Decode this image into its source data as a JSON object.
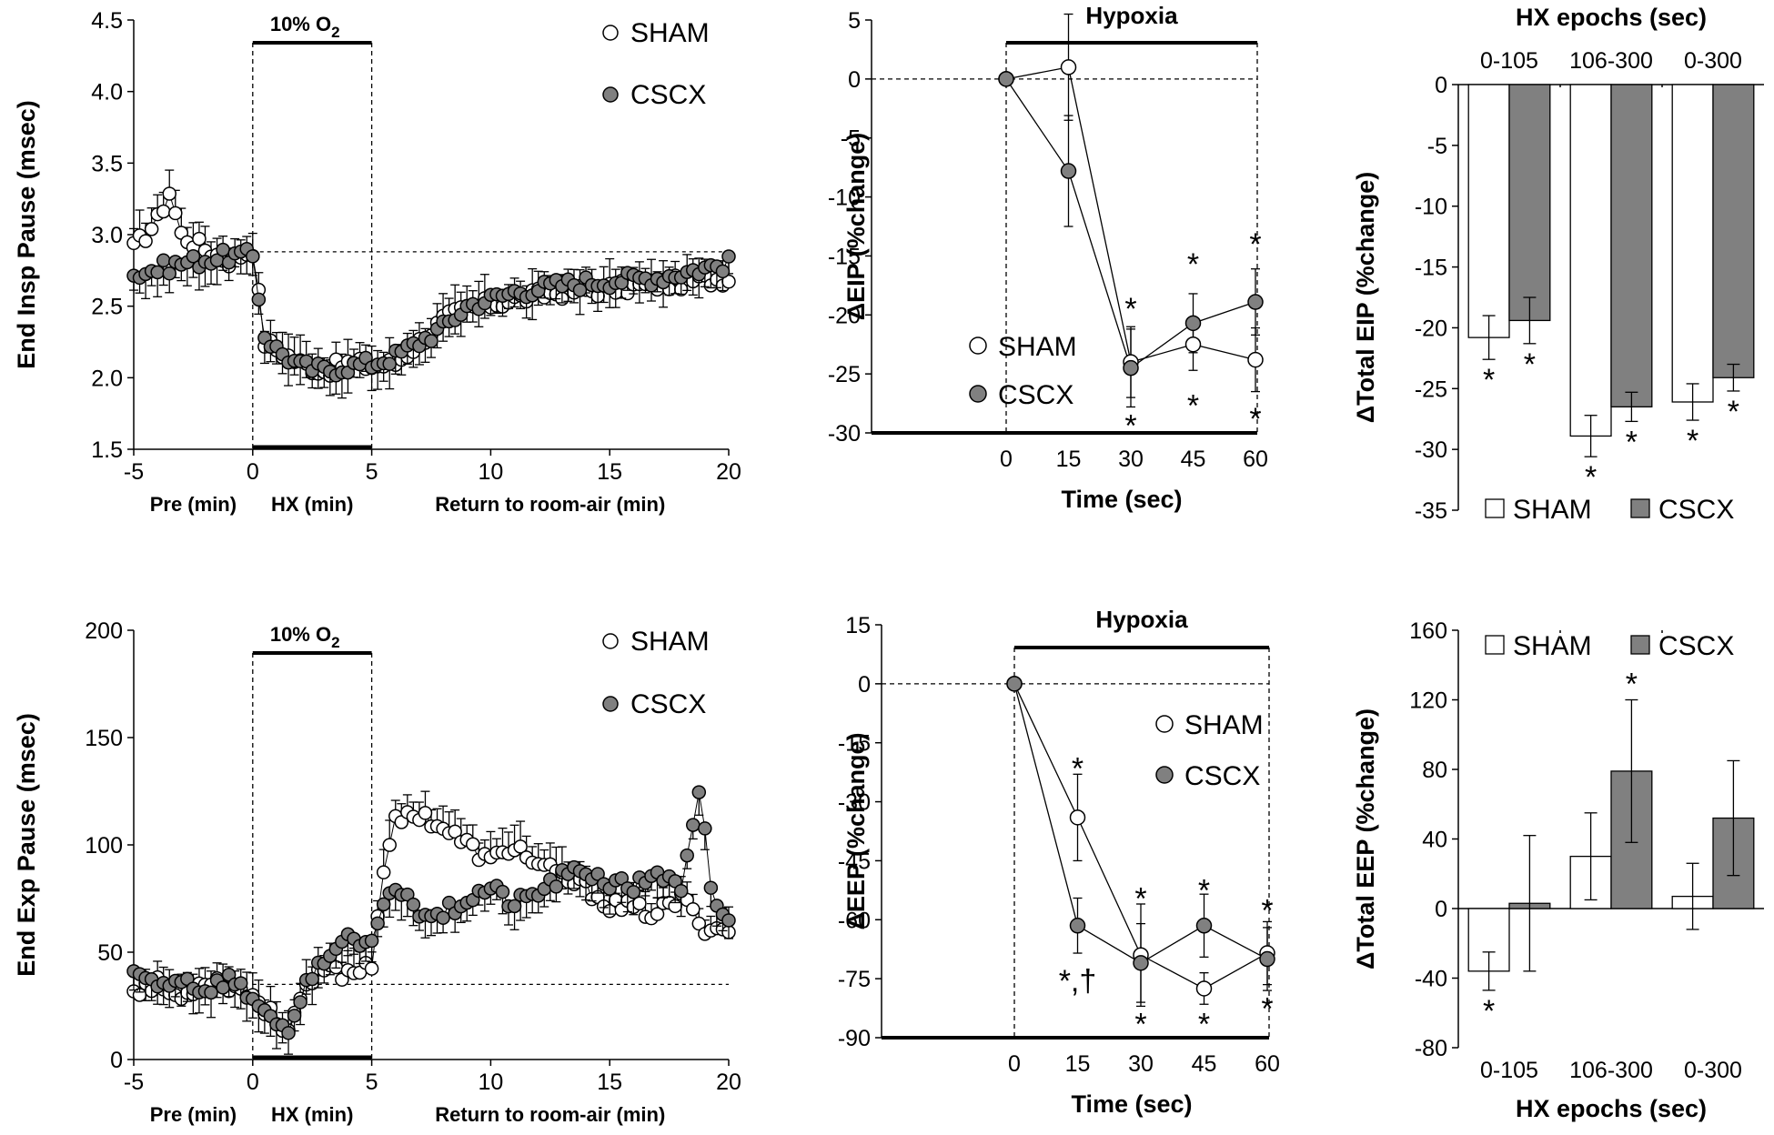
{
  "colors": {
    "sham_fill": "#ffffff",
    "cscx_fill": "#808080",
    "line": "#000000"
  },
  "chart_data": [
    {
      "id": "A",
      "type": "scatter",
      "ylabel": "End Insp Pause (msec)",
      "ylim": [
        1.5,
        4.5
      ],
      "yticks": [
        "1.5",
        "2.0",
        "2.5",
        "3.0",
        "3.5",
        "4.0",
        "4.5"
      ],
      "xlim": [
        -5,
        20
      ],
      "xticks": [
        "-5",
        "0",
        "5",
        "10",
        "15",
        "20"
      ],
      "box_label": "10% O",
      "box_label_sub": "2",
      "box_range": [
        0,
        5
      ],
      "baseline": 2.88,
      "segments": [
        "Pre (min)",
        "HX (min)",
        "Return to room-air (min)"
      ],
      "legend": [
        "SHAM",
        "CSCX"
      ],
      "sham_anchors": [
        [
          -5,
          2.9
        ],
        [
          -4,
          3.1
        ],
        [
          -3.5,
          3.3
        ],
        [
          -3,
          3.0
        ],
        [
          -2,
          2.9
        ],
        [
          -1,
          2.82
        ],
        [
          0,
          2.9
        ],
        [
          0.5,
          2.25
        ],
        [
          1,
          2.2
        ],
        [
          2,
          2.1
        ],
        [
          3,
          2.05
        ],
        [
          4,
          2.1
        ],
        [
          5,
          2.08
        ],
        [
          6,
          2.1
        ],
        [
          7,
          2.25
        ],
        [
          8,
          2.4
        ],
        [
          9,
          2.48
        ],
        [
          11,
          2.55
        ],
        [
          13,
          2.6
        ],
        [
          15,
          2.62
        ],
        [
          17,
          2.65
        ],
        [
          20,
          2.7
        ]
      ],
      "cscx_anchors": [
        [
          -5,
          2.72
        ],
        [
          -3,
          2.8
        ],
        [
          -1,
          2.85
        ],
        [
          0,
          2.85
        ],
        [
          0.5,
          2.3
        ],
        [
          1,
          2.2
        ],
        [
          2,
          2.08
        ],
        [
          3,
          2.05
        ],
        [
          4,
          2.08
        ],
        [
          5,
          2.1
        ],
        [
          6,
          2.15
        ],
        [
          7,
          2.25
        ],
        [
          8,
          2.35
        ],
        [
          9,
          2.5
        ],
        [
          11,
          2.6
        ],
        [
          13,
          2.65
        ],
        [
          15,
          2.68
        ],
        [
          17,
          2.7
        ],
        [
          20,
          2.8
        ]
      ]
    },
    {
      "id": "B",
      "type": "line",
      "ylabel": "ΔEIP (%change)",
      "xlabel": "Time (sec)",
      "title": "Hypoxia",
      "ylim": [
        -30,
        5
      ],
      "yticks": [
        "5",
        "0",
        "-5",
        "-10",
        "-15",
        "-20",
        "-25",
        "-30"
      ],
      "x": [
        0,
        15,
        30,
        45,
        60
      ],
      "xticks": [
        "0",
        "15",
        "30",
        "45",
        "60"
      ],
      "legend": [
        "SHAM",
        "CSCX"
      ],
      "series": [
        {
          "name": "SHAM",
          "values": [
            0,
            1,
            -24,
            -22.5,
            -23.8
          ],
          "err": [
            0,
            4.5,
            3,
            2.2,
            2.7
          ]
        },
        {
          "name": "CSCX",
          "values": [
            0,
            -7.8,
            -24.5,
            -20.7,
            -18.9
          ],
          "err": [
            0,
            4.7,
            3.3,
            2.5,
            2.8
          ]
        }
      ],
      "asterisks": [
        {
          "x": 30,
          "y": -19.3,
          "text": "*"
        },
        {
          "x": 30,
          "y": -29.2,
          "text": "*"
        },
        {
          "x": 45,
          "y": -15.5,
          "text": "*"
        },
        {
          "x": 45,
          "y": -27.5,
          "text": "*"
        },
        {
          "x": 60,
          "y": -13.8,
          "text": "*"
        },
        {
          "x": 60,
          "y": -28.6,
          "text": "*"
        }
      ]
    },
    {
      "id": "C",
      "type": "bar",
      "ylabel": "ΔTotal EIP (%change)",
      "top_label": "HX epochs (sec)",
      "ylim": [
        -35,
        0
      ],
      "yticks": [
        "0",
        "-5",
        "-10",
        "-15",
        "-20",
        "-25",
        "-30",
        "-35"
      ],
      "categories": [
        "0-105",
        "106-300",
        "0-300"
      ],
      "legend": [
        "SHAM",
        "CSCX"
      ],
      "series": [
        {
          "name": "SHAM",
          "values": [
            -20.8,
            -28.9,
            -26.1
          ],
          "err": [
            1.8,
            1.7,
            1.5
          ]
        },
        {
          "name": "CSCX",
          "values": [
            -19.4,
            -26.5,
            -24.1
          ],
          "err": [
            1.9,
            1.2,
            1.1
          ]
        }
      ],
      "asterisks": [
        {
          "cat": 0,
          "s": 0,
          "text": "*"
        },
        {
          "cat": 0,
          "s": 1,
          "text": "*"
        },
        {
          "cat": 1,
          "s": 0,
          "text": "*"
        },
        {
          "cat": 1,
          "s": 1,
          "text": "*"
        },
        {
          "cat": 2,
          "s": 0,
          "text": "*"
        },
        {
          "cat": 2,
          "s": 1,
          "text": "*"
        }
      ]
    },
    {
      "id": "D",
      "type": "scatter",
      "ylabel": "End Exp Pause (msec)",
      "ylim": [
        0,
        200
      ],
      "yticks": [
        "0",
        "50",
        "100",
        "150",
        "200"
      ],
      "xlim": [
        -5,
        20
      ],
      "xticks": [
        "-5",
        "0",
        "5",
        "10",
        "15",
        "20"
      ],
      "box_label": "10% O",
      "box_label_sub": "2",
      "box_range": [
        0,
        5
      ],
      "baseline": 35,
      "segments": [
        "Pre (min)",
        "HX (min)",
        "Return to room-air (min)"
      ],
      "legend": [
        "SHAM",
        "CSCX"
      ],
      "sham_anchors": [
        [
          -5,
          33
        ],
        [
          -4,
          35
        ],
        [
          -3,
          28
        ],
        [
          -2,
          38
        ],
        [
          -1,
          35
        ],
        [
          0,
          30
        ],
        [
          1,
          18
        ],
        [
          1.5,
          15
        ],
        [
          2,
          28
        ],
        [
          3,
          42
        ],
        [
          4,
          40
        ],
        [
          5,
          45
        ],
        [
          5.5,
          90
        ],
        [
          6,
          110
        ],
        [
          7,
          115
        ],
        [
          8,
          108
        ],
        [
          9,
          100
        ],
        [
          10,
          92
        ],
        [
          11,
          100
        ],
        [
          12,
          90
        ],
        [
          13,
          85
        ],
        [
          14,
          80
        ],
        [
          15,
          72
        ],
        [
          16,
          70
        ],
        [
          17,
          68
        ],
        [
          18,
          75
        ],
        [
          19,
          62
        ],
        [
          20,
          60
        ]
      ],
      "cscx_anchors": [
        [
          -5,
          40
        ],
        [
          -4,
          35
        ],
        [
          -3,
          38
        ],
        [
          -2,
          32
        ],
        [
          -1,
          38
        ],
        [
          0,
          28
        ],
        [
          0.5,
          25
        ],
        [
          1,
          15
        ],
        [
          1.5,
          10
        ],
        [
          2,
          30
        ],
        [
          3,
          48
        ],
        [
          4,
          55
        ],
        [
          5,
          52
        ],
        [
          5.5,
          75
        ],
        [
          6,
          80
        ],
        [
          7,
          70
        ],
        [
          8,
          68
        ],
        [
          9,
          75
        ],
        [
          10,
          80
        ],
        [
          11,
          72
        ],
        [
          12,
          78
        ],
        [
          13,
          85
        ],
        [
          14,
          88
        ],
        [
          15,
          82
        ],
        [
          16,
          80
        ],
        [
          17,
          88
        ],
        [
          18,
          78
        ],
        [
          18.8,
          125
        ],
        [
          19.3,
          75
        ],
        [
          20,
          65
        ]
      ]
    },
    {
      "id": "E",
      "type": "line",
      "ylabel": "ΔEEP (%change)",
      "xlabel": "Time (sec)",
      "title": "Hypoxia",
      "ylim": [
        -90,
        15
      ],
      "yticks": [
        "15",
        "0",
        "-15",
        "-30",
        "-45",
        "-60",
        "-75",
        "-90"
      ],
      "x": [
        0,
        15,
        30,
        45,
        60
      ],
      "xticks": [
        "0",
        "15",
        "30",
        "45",
        "60"
      ],
      "legend": [
        "SHAM",
        "CSCX"
      ],
      "series": [
        {
          "name": "SHAM",
          "values": [
            0,
            -34,
            -69,
            -77.5,
            -68.5
          ],
          "err": [
            0,
            11,
            13,
            4,
            8
          ]
        },
        {
          "name": "CSCX",
          "values": [
            0,
            -61.5,
            -71,
            -61.5,
            -70
          ],
          "err": [
            0,
            7,
            10,
            8,
            8
          ]
        }
      ],
      "asterisks": [
        {
          "x": 15,
          "y": -21,
          "text": "*"
        },
        {
          "x": 15,
          "y": -75,
          "text": "*,†"
        },
        {
          "x": 30,
          "y": -54,
          "text": "*"
        },
        {
          "x": 30,
          "y": -86,
          "text": "*"
        },
        {
          "x": 45,
          "y": -52,
          "text": "*"
        },
        {
          "x": 45,
          "y": -86,
          "text": "*"
        },
        {
          "x": 60,
          "y": -57,
          "text": "*"
        },
        {
          "x": 60,
          "y": -82,
          "text": "*"
        }
      ]
    },
    {
      "id": "F",
      "type": "bar",
      "ylabel": "ΔTotal EEP (%change)",
      "xlabel": "HX epochs (sec)",
      "ylim": [
        -80,
        160
      ],
      "yticks": [
        "160",
        "120",
        "80",
        "40",
        "0",
        "-40",
        "-80"
      ],
      "categories": [
        "0-105",
        "106-300",
        "0-300"
      ],
      "legend": [
        "SHAM",
        "CSCX"
      ],
      "series": [
        {
          "name": "SHAM",
          "values": [
            -36,
            30,
            7
          ],
          "err": [
            11,
            25,
            19
          ]
        },
        {
          "name": "CSCX",
          "values": [
            3,
            79,
            52
          ],
          "err": [
            39,
            41,
            33
          ]
        }
      ],
      "asterisks": [
        {
          "cat": 0,
          "s": 0,
          "text": "*"
        },
        {
          "cat": 1,
          "s": 1,
          "text": "*"
        }
      ]
    }
  ]
}
